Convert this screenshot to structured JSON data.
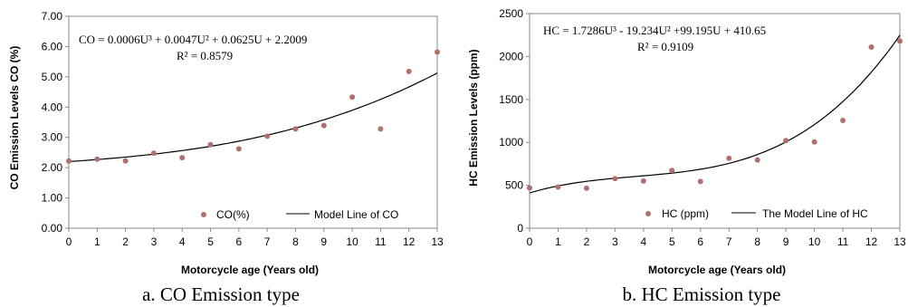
{
  "chart_data": [
    {
      "type": "scatter",
      "x": [
        0,
        1,
        2,
        3,
        4,
        5,
        6,
        7,
        8,
        9,
        10,
        11,
        12,
        13
      ],
      "series": [
        {
          "name": "CO(%)",
          "kind": "points",
          "color": "#b07070",
          "values": [
            2.22,
            2.28,
            2.22,
            2.48,
            2.33,
            2.76,
            2.62,
            3.04,
            3.28,
            3.39,
            4.33,
            3.28,
            5.18,
            5.82
          ]
        },
        {
          "name": "Model Line of CO",
          "kind": "line",
          "color": "#000000",
          "coefficients": [
            0.0006,
            0.0047,
            0.0625,
            2.2009
          ]
        }
      ],
      "equation": "CO = 0.0006U³ + 0.0047U² + 0.0625U + 2.2009",
      "r2": "R² = 0.8579",
      "xlabel": "Motorcycle age (Years old)",
      "ylabel": "CO Emission Levels CO (%)",
      "yticks": [
        "0.00",
        "1.00",
        "2.00",
        "3.00",
        "4.00",
        "5.00",
        "6.00",
        "7.00"
      ],
      "xticks": [
        "0",
        "1",
        "2",
        "3",
        "4",
        "5",
        "6",
        "7",
        "8",
        "9",
        "10",
        "11",
        "12",
        "13"
      ],
      "xlim": [
        0,
        13
      ],
      "ylim": [
        0,
        7
      ],
      "legend_placement": "bottom-right",
      "grid": false,
      "caption": "a. CO Emission type"
    },
    {
      "type": "scatter",
      "x": [
        0,
        1,
        2,
        3,
        4,
        5,
        6,
        7,
        8,
        9,
        10,
        11,
        12,
        13
      ],
      "series": [
        {
          "name": "HC (ppm)",
          "kind": "points",
          "color": "#b07070",
          "values": [
            470,
            480,
            465,
            578,
            550,
            672,
            545,
            815,
            795,
            1020,
            1005,
            1255,
            2110,
            2180
          ]
        },
        {
          "name": "The Model Line of HC",
          "kind": "line",
          "color": "#000000",
          "coefficients": [
            1.7286,
            -19.234,
            99.195,
            410.65
          ]
        }
      ],
      "equation": "HC = 1.7286U³ - 19.234U² +99.195U + 410.65",
      "r2": "R² = 0.9109",
      "xlabel": "Motorcycle age (Years old)",
      "ylabel": "HC Emission Levels (ppm)",
      "yticks": [
        "0",
        "500",
        "1000",
        "1500",
        "2000",
        "2500"
      ],
      "xticks": [
        "0",
        "1",
        "2",
        "3",
        "4",
        "5",
        "6",
        "7",
        "8",
        "9",
        "10",
        "11",
        "12",
        "13"
      ],
      "xlim": [
        0,
        13
      ],
      "ylim": [
        0,
        2500
      ],
      "legend_placement": "bottom-right",
      "grid": false,
      "caption": "b. HC Emission type"
    }
  ]
}
